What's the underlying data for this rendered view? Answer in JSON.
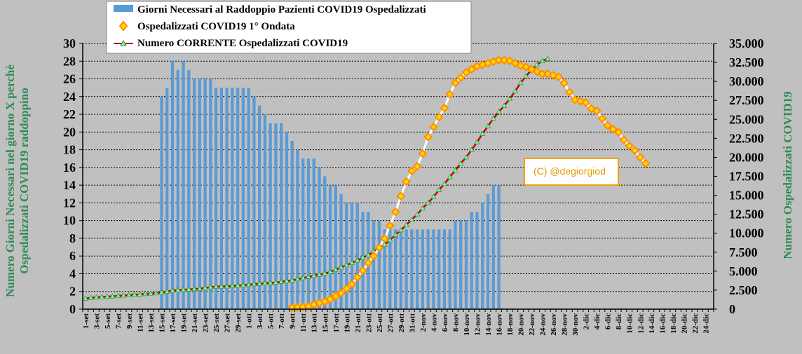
{
  "chart_data": {
    "type": "bar+line",
    "x_labels": [
      "1-set",
      "3-set",
      "5-set",
      "7-set",
      "9-set",
      "11-set",
      "13-set",
      "15-set",
      "17-set",
      "19-set",
      "21-set",
      "23-set",
      "25-set",
      "27-set",
      "29-set",
      "1-ott",
      "3-ott",
      "5-ott",
      "7-ott",
      "9-ott",
      "11-ott",
      "13-ott",
      "15-ott",
      "17-ott",
      "19-ott",
      "21-ott",
      "23-ott",
      "25-ott",
      "27-ott",
      "29-ott",
      "31-ott",
      "2-nov",
      "4-nov",
      "6-nov",
      "8-nov",
      "10-nov",
      "12-nov",
      "14-nov",
      "16-nov",
      "18-nov",
      "20-nov",
      "22-nov",
      "24-nov",
      "26-nov",
      "28-nov",
      "30-nov",
      "2-dic",
      "4-dic",
      "6-dic",
      "8-dic",
      "10-dic",
      "12-dic",
      "14-dic",
      "16-dic",
      "18-dic",
      "20-dic",
      "22-dic",
      "24-dic"
    ],
    "y_left": {
      "label_lines": [
        "Numero Giorni Necessari nel giorno X perchè",
        "Ospedalizzati COVID19 raddoppino"
      ],
      "min": 0,
      "max": 30,
      "step": 2,
      "ticks": [
        "0",
        "2",
        "4",
        "6",
        "8",
        "10",
        "12",
        "14",
        "16",
        "18",
        "20",
        "22",
        "24",
        "26",
        "28",
        "30"
      ]
    },
    "y_right": {
      "label": "Numero Ospedalizzati COVID19",
      "min": 0,
      "max": 35000,
      "step": 2500,
      "ticks": [
        "0",
        "2.500",
        "5.000",
        "7.500",
        "10.000",
        "12.500",
        "15.000",
        "17.500",
        "20.000",
        "22.500",
        "25.000",
        "27.500",
        "30.000",
        "32.500",
        "35.000"
      ]
    },
    "series": [
      {
        "name": "Giorni Necessari al Raddoppio Pazienti COVID19 Ospedalizzati",
        "kind": "bar",
        "axis": "left",
        "color": "#5b9bd5",
        "start_day": 14,
        "values": [
          24,
          25,
          28,
          27,
          28,
          27,
          26,
          26,
          26,
          26,
          25,
          25,
          25,
          25,
          25,
          25,
          25,
          24,
          23,
          22,
          21,
          21,
          21,
          20,
          19,
          18,
          17,
          17,
          17,
          16,
          15,
          14,
          14,
          13,
          12,
          12,
          12,
          11,
          11,
          10,
          10,
          9,
          9,
          9,
          9,
          9,
          9,
          9,
          9,
          9,
          9,
          9,
          9,
          9,
          10,
          10,
          10,
          11,
          11,
          12,
          13,
          14,
          14
        ]
      },
      {
        "name": "Ospedalizzati COVID19 1° Ondata",
        "kind": "line-diamond",
        "axis": "right",
        "color": "#ff8c00",
        "marker_fill": "#ffd700",
        "start_day": 38,
        "every": 1,
        "values": [
          200,
          250,
          300,
          400,
          600,
          800,
          1000,
          1300,
          1700,
          2100,
          2700,
          3300,
          4200,
          5100,
          6100,
          7000,
          8100,
          9300,
          11000,
          12800,
          14900,
          16800,
          18200,
          18800,
          20500,
          22700,
          24000,
          25300,
          26500,
          28300,
          29800,
          30500,
          31200,
          31600,
          32000,
          32200,
          32400,
          32600,
          32800,
          32800,
          32700,
          32400,
          32100,
          31900,
          31600,
          31300,
          31000,
          31000,
          30800,
          30600,
          29800,
          28600,
          27600,
          27400,
          27200,
          26400,
          26100,
          25100,
          24200,
          23700,
          23300,
          22300,
          21500,
          20900,
          20000,
          19200
        ]
      },
      {
        "name": "Numero CORRENTE Ospedalizzati COVID19",
        "kind": "line-triangle",
        "axis": "right",
        "color": "#c00000",
        "marker_fill": "#7fff7f",
        "start_day": 0,
        "every": 1,
        "values": [
          1400,
          1500,
          1550,
          1600,
          1650,
          1700,
          1750,
          1800,
          1850,
          1900,
          1950,
          2000,
          2050,
          2100,
          2200,
          2300,
          2450,
          2500,
          2550,
          2600,
          2650,
          2700,
          2800,
          2900,
          2950,
          3000,
          3000,
          3050,
          3100,
          3150,
          3200,
          3300,
          3350,
          3400,
          3450,
          3500,
          3600,
          3700,
          3800,
          3950,
          4100,
          4250,
          4400,
          4550,
          4700,
          4900,
          5200,
          5500,
          5800,
          6100,
          6400,
          6800,
          7100,
          7600,
          8000,
          8500,
          9100,
          9800,
          10400,
          11100,
          11800,
          12500,
          13300,
          14000,
          14800,
          15700,
          16500,
          17400,
          18300,
          19200,
          20000,
          21000,
          22000,
          23100,
          24100,
          25100,
          26000,
          26800,
          27700,
          28700,
          29800,
          30700,
          31500,
          32200,
          32700,
          33000
        ]
      }
    ],
    "annotation": "(C) @degiorgiod"
  },
  "theme": {
    "bar": "#5b9bd5",
    "diamond_edge": "#ff8c00",
    "diamond_fill": "#ffd700",
    "line_red": "#c00000",
    "tri_fill": "#7fff7f",
    "axis_label": "#2e8b57",
    "annotation": "#e69a00"
  }
}
